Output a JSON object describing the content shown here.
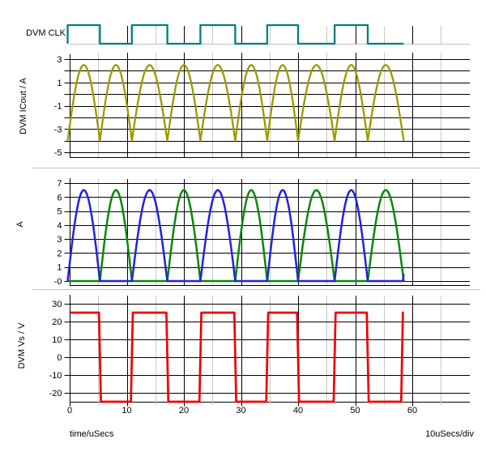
{
  "chart_data": {
    "type": "line",
    "title": "",
    "xlabel": "time/uSecs",
    "x_scale_label": "10uSecs/div",
    "x_tick_labels": [
      "0",
      "10",
      "20",
      "30",
      "40",
      "50",
      "60"
    ],
    "x_major_ticks": [
      0,
      10,
      20,
      30,
      40,
      50,
      60
    ],
    "x_minor_ticks": [
      5,
      15,
      25,
      35,
      45,
      55,
      65
    ],
    "x_grid_range": [
      0,
      70
    ],
    "trace_start": -0.35,
    "trace_end": 58.5,
    "switch_times": [
      -0.35,
      5.3,
      10.9,
      17.1,
      22.9,
      29.0,
      34.6,
      40.0,
      46.4,
      52.2,
      58.5
    ],
    "panels": [
      {
        "id": "clk",
        "label": "DVM CLK",
        "kind": "digital",
        "series": [
          {
            "color": "#007E7E",
            "shape": "clock",
            "first_edge": "rise",
            "high_intervals": [
              [
                -0.35,
                5.3
              ],
              [
                10.9,
                17.1
              ],
              [
                22.9,
                29.0
              ],
              [
                34.6,
                40.0
              ],
              [
                46.4,
                52.2
              ]
            ]
          }
        ]
      },
      {
        "id": "icout",
        "label": "DVM ICout / A",
        "kind": "analog",
        "y_range": [
          -5,
          3
        ],
        "y_grid_step": 1,
        "y_tick_values": [
          3,
          1,
          -1,
          -3,
          -5
        ],
        "y_tick_labels": [
          "3",
          "1",
          "-1",
          "-3",
          "-5"
        ],
        "series": [
          {
            "color": "#9A9A00",
            "shape": "rectified_sine",
            "trough": -4,
            "peak": 2.5,
            "active": "all"
          }
        ]
      },
      {
        "id": "a",
        "label": "A",
        "kind": "analog",
        "y_range": [
          0,
          7
        ],
        "y_grid_step": 1,
        "y_tick_values": [
          7,
          6,
          5,
          4,
          3,
          2,
          1,
          0
        ],
        "y_tick_labels": [
          "7",
          "6",
          "5",
          "4",
          "3",
          "2",
          "1",
          "-0"
        ],
        "series": [
          {
            "color": "#2222DC",
            "shape": "half_sine_pulses",
            "base": 0,
            "peak": 6.5,
            "active": "even",
            "end_blip": 0.5
          },
          {
            "color": "#0B870B",
            "shape": "half_sine_pulses",
            "base": 0,
            "peak": 6.5,
            "active": "odd"
          }
        ]
      },
      {
        "id": "vs",
        "label": "DVM Vs / V",
        "kind": "analog",
        "y_range": [
          -25,
          30
        ],
        "y_grid_step": 10,
        "y_tick_values": [
          30,
          20,
          10,
          0,
          -10,
          -20
        ],
        "y_tick_labels": [
          "30",
          "20",
          "10",
          "0",
          "-10",
          "-20"
        ],
        "series": [
          {
            "color": "#EE0000",
            "shape": "square",
            "high": 25,
            "low": -25,
            "final_rise_time": 58.2
          }
        ]
      }
    ]
  },
  "labels": {
    "clk": "DVM CLK",
    "icout": "DVM ICout / A",
    "a": "A",
    "vs": "DVM Vs / V",
    "xaxis": "time/uSecs",
    "per_div": "10uSecs/div"
  },
  "colors": {
    "clk": "#007E7E",
    "icout": "#9A9A00",
    "a_blue": "#2222DC",
    "a_green": "#0B870B",
    "vs": "#EE0000",
    "grid_major": "#000000",
    "grid_minor": "#C8C8C8",
    "baseline_gray": "#C0C0C0",
    "background": "#FFFFFF",
    "text": "#000000"
  }
}
